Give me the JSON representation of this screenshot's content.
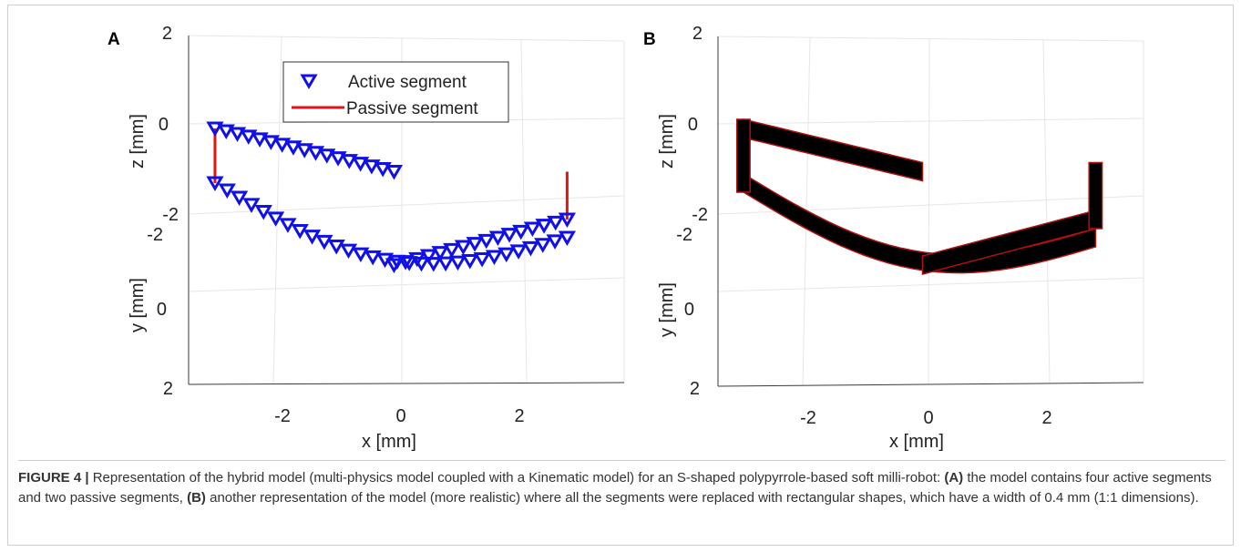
{
  "figure": {
    "caption_label": "FIGURE 4 |",
    "caption_parts": [
      " Representation of the hybrid model (multi-physics model coupled with a Kinematic model) for an S-shaped polypyrrole-based soft milli-robot: ",
      "(A)",
      " the model contains four active segments and two passive segments, ",
      "(B)",
      " another representation of the model (more realistic) where all the segments were replaced with rectangular shapes, which have a width of 0.4 mm (1:1 dimensions)."
    ]
  },
  "chart_data": [
    {
      "panel": "A",
      "type": "scatter",
      "view": "3d",
      "xlabel": "x [mm]",
      "ylabel": "y [mm]",
      "zlabel": "z [mm]",
      "x_ticks": [
        "-2",
        "0",
        "2"
      ],
      "y_ticks": [
        "2",
        "0",
        "-2"
      ],
      "z_ticks": [
        "2",
        "0",
        "-2"
      ],
      "grid": true,
      "legend": {
        "position": "top-center",
        "entries": [
          "Active segment",
          "Passive segment"
        ]
      },
      "series": [
        {
          "name": "Active segment",
          "marker": "triangle-down",
          "color": "#1010e8",
          "segments": [
            {
              "x": [
                -3.1,
                -0.1
              ],
              "y": [
                0,
                0
              ],
              "z": [
                0.0,
                -0.95
              ],
              "points": 17
            },
            {
              "x": [
                -3.1,
                2.8
              ],
              "y": [
                0,
                0
              ],
              "z": [
                -1.2,
                -2.4
              ],
              "points": 30,
              "sag": true
            },
            {
              "x": [
                -0.1,
                2.8
              ],
              "y": [
                0,
                0
              ],
              "z": [
                -3.0,
                -2.0
              ],
              "points": 16
            }
          ]
        },
        {
          "name": "Passive segment",
          "marker": "line",
          "color": "#e01515",
          "segments": [
            {
              "x": [
                -3.1,
                -3.1
              ],
              "z": [
                0.0,
                -1.2
              ]
            },
            {
              "x": [
                2.8,
                2.8
              ],
              "z": [
                -0.95,
                -2.0
              ]
            }
          ]
        }
      ]
    },
    {
      "panel": "B",
      "type": "area",
      "view": "3d",
      "xlabel": "x [mm]",
      "ylabel": "y [mm]",
      "zlabel": "z [mm]",
      "x_ticks": [
        "-2",
        "0",
        "2"
      ],
      "y_ticks": [
        "2",
        "0",
        "-2"
      ],
      "z_ticks": [
        "2",
        "0",
        "-2"
      ],
      "grid": true,
      "fill_color": "#000000",
      "edge_color": "#b01010",
      "segment_width_mm": 0.4
    }
  ]
}
